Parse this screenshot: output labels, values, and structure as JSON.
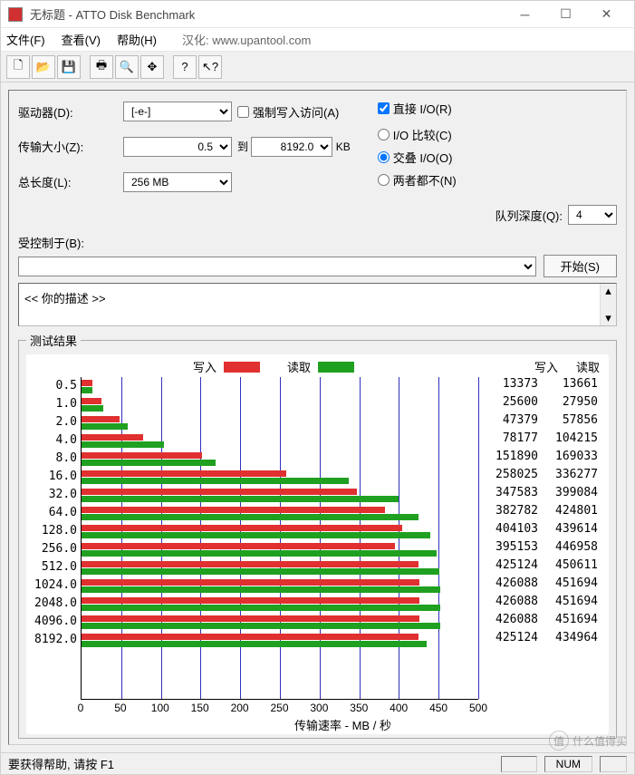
{
  "window": {
    "title": "无标题 - ATTO Disk Benchmark"
  },
  "menubar": {
    "items": [
      "文件(F)",
      "查看(V)",
      "帮助(H)"
    ],
    "cn_label": "汉化: www.upantool.com"
  },
  "toolbar": {
    "icons": [
      "new",
      "open",
      "save",
      "print",
      "preview",
      "move",
      "help",
      "whatsthis"
    ]
  },
  "options": {
    "drive_label": "驱动器(D):",
    "drive_value": "[-e-]",
    "xfer_label": "传输大小(Z):",
    "xfer_from": "0.5",
    "xfer_to_label": "到",
    "xfer_to": "8192.0",
    "xfer_unit": "KB",
    "len_label": "总长度(L):",
    "len_value": "256 MB",
    "force_write": "强制写入访问(A)",
    "force_write_checked": false,
    "direct_io": "直接 I/O(R)",
    "direct_io_checked": true,
    "radio_compare": "I/O 比较(C)",
    "radio_overlap": "交叠 I/O(O)",
    "radio_none": "两者都不(N)",
    "radio_selected": "overlap",
    "queue_label": "队列深度(Q):",
    "queue_value": "4",
    "controlled_label": "受控制于(B):",
    "controlled_value": "",
    "start_btn": "开始(S)",
    "desc_text": "<<  你的描述    >>"
  },
  "results": {
    "group_title": "测试结果",
    "legend_write": "写入",
    "legend_read": "读取",
    "col_write": "写入",
    "col_read": "读取",
    "x_title": "传输速率 - MB / 秒",
    "x_max": 500,
    "x_ticks": [
      0,
      50,
      100,
      150,
      200,
      250,
      300,
      350,
      400,
      450,
      500
    ],
    "colors": {
      "write": "#e03030",
      "read": "#20a020",
      "grid": "#3030c0",
      "bg": "#ffffff"
    },
    "rows": [
      {
        "size": "0.5",
        "write": 13373,
        "read": 13661
      },
      {
        "size": "1.0",
        "write": 25600,
        "read": 27950
      },
      {
        "size": "2.0",
        "write": 47379,
        "read": 57856
      },
      {
        "size": "4.0",
        "write": 78177,
        "read": 104215
      },
      {
        "size": "8.0",
        "write": 151890,
        "read": 169033
      },
      {
        "size": "16.0",
        "write": 258025,
        "read": 336277
      },
      {
        "size": "32.0",
        "write": 347583,
        "read": 399084
      },
      {
        "size": "64.0",
        "write": 382782,
        "read": 424801
      },
      {
        "size": "128.0",
        "write": 404103,
        "read": 439614
      },
      {
        "size": "256.0",
        "write": 395153,
        "read": 446958
      },
      {
        "size": "512.0",
        "write": 425124,
        "read": 450611
      },
      {
        "size": "1024.0",
        "write": 426088,
        "read": 451694
      },
      {
        "size": "2048.0",
        "write": 426088,
        "read": 451694
      },
      {
        "size": "4096.0",
        "write": 426088,
        "read": 451694
      },
      {
        "size": "8192.0",
        "write": 425124,
        "read": 434964
      }
    ]
  },
  "statusbar": {
    "help_text": "要获得帮助, 请按 F1",
    "num": "NUM"
  },
  "watermark": {
    "char": "值",
    "text": "什么值得买"
  }
}
